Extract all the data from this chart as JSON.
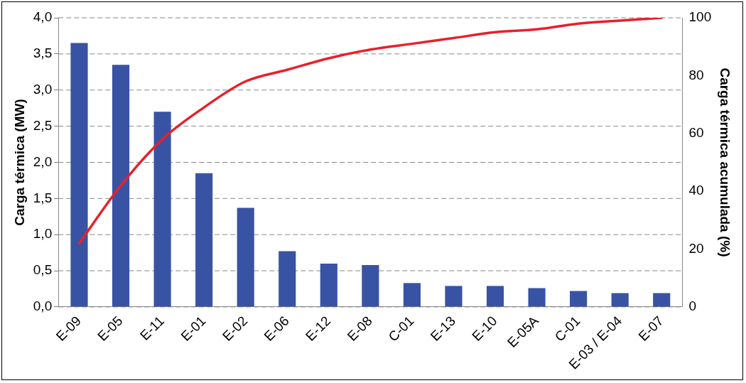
{
  "chart_data": {
    "type": "bar",
    "ylabel": "Carga térmica (MW)",
    "y2label": "Carga térmica acumulada (%)",
    "categories": [
      "E-09",
      "E-05",
      "E-11",
      "E-01",
      "E-02",
      "E-06",
      "E-12",
      "E-08",
      "C-01",
      "E-13",
      "E-10",
      "E-05A",
      "C-01",
      "E-03 / E-04",
      "E-07"
    ],
    "series": [
      {
        "color": "#3953a4",
        "values": [
          3.65,
          3.35,
          2.7,
          1.85,
          1.37,
          0.77,
          0.6,
          0.58,
          0.33,
          0.29,
          0.29,
          0.26,
          0.22,
          0.19,
          0.19
        ]
      },
      {
        "type": "line",
        "axis": "y2",
        "color": "#e8202a",
        "values": [
          22,
          42,
          58,
          69,
          78,
          82,
          86,
          89,
          91,
          93,
          95,
          96,
          98,
          99,
          100
        ]
      }
    ],
    "ylim": [
      0,
      4
    ],
    "yticks": [
      {
        "value": 0,
        "label": "0,0"
      },
      {
        "value": 0.5,
        "label": "0,5"
      },
      {
        "value": 1,
        "label": "1,0"
      },
      {
        "value": 1.5,
        "label": "1,5"
      },
      {
        "value": 2,
        "label": "2,0"
      },
      {
        "value": 2.5,
        "label": "2,5"
      },
      {
        "value": 3,
        "label": "3,0"
      },
      {
        "value": 3.5,
        "label": "3,5"
      },
      {
        "value": 4,
        "label": "4,0"
      }
    ],
    "y2lim": [
      0,
      100
    ],
    "y2ticks": [
      0,
      20,
      40,
      60,
      80,
      100
    ],
    "grid": "y",
    "legend": false,
    "marker": "none",
    "line_style": "solid"
  }
}
